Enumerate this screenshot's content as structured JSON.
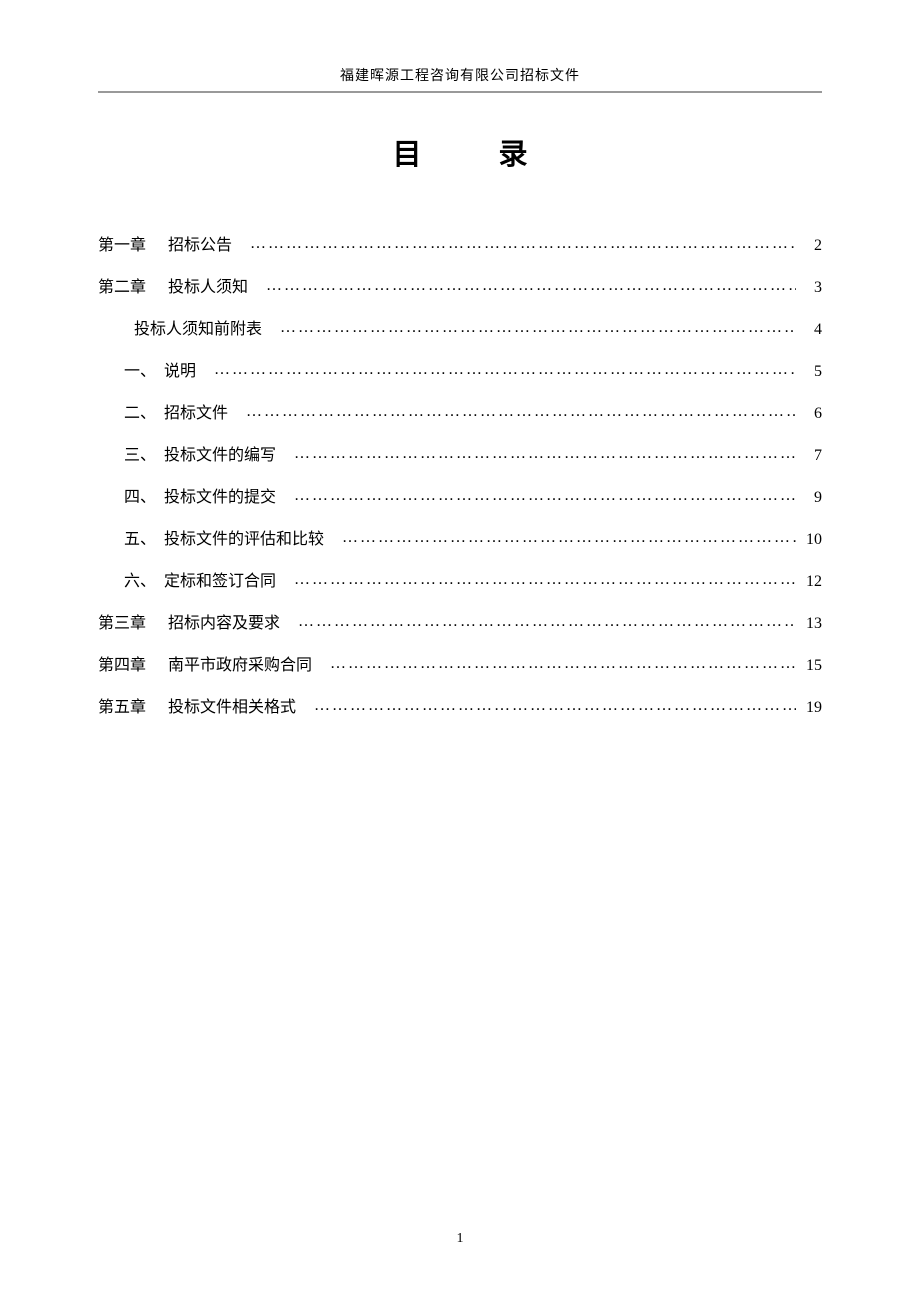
{
  "document": {
    "header_text": "福建晖源工程咨询有限公司招标文件",
    "title": "目　录",
    "page_number": "1",
    "background_color": "#ffffff",
    "text_color": "#000000",
    "header_border_color": "#999999",
    "title_fontsize": 29,
    "body_fontsize": 16,
    "header_fontsize": 14,
    "font_family": "SimSun"
  },
  "toc": {
    "entries": [
      {
        "level": 0,
        "prefix": "第一章",
        "label": "招标公告",
        "page": "2"
      },
      {
        "level": 0,
        "prefix": "第二章",
        "label": "投标人须知",
        "page": "3"
      },
      {
        "level": 1,
        "prefix": "",
        "label": "投标人须知前附表",
        "page": "4"
      },
      {
        "level": 2,
        "prefix": "一、",
        "label": "说明",
        "page": "5"
      },
      {
        "level": 2,
        "prefix": "二、",
        "label": "招标文件",
        "page": "6"
      },
      {
        "level": 2,
        "prefix": "三、",
        "label": "投标文件的编写",
        "page": "7"
      },
      {
        "level": 2,
        "prefix": "四、",
        "label": "投标文件的提交",
        "page": "9"
      },
      {
        "level": 2,
        "prefix": "五、",
        "label": "投标文件的评估和比较",
        "page": "10"
      },
      {
        "level": 2,
        "prefix": "六、",
        "label": "定标和签订合同",
        "page": "12"
      },
      {
        "level": 0,
        "prefix": "第三章",
        "label": "招标内容及要求",
        "page": "13"
      },
      {
        "level": 0,
        "prefix": "第四章",
        "label": "南平市政府采购合同",
        "page": "15"
      },
      {
        "level": 0,
        "prefix": "第五章",
        "label": "投标文件相关格式",
        "page": "19"
      }
    ],
    "dot_leader": "…………………………………………………………………………………………………………"
  }
}
